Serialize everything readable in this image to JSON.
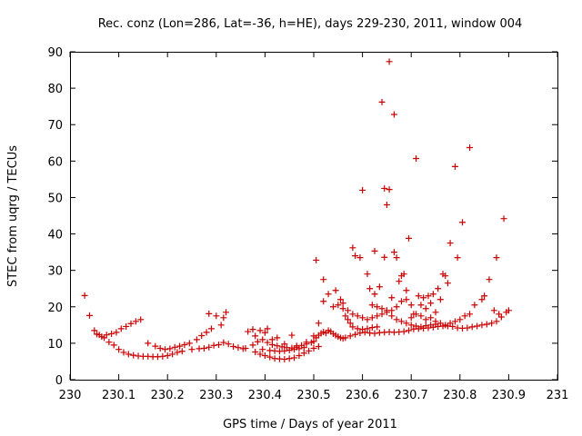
{
  "chart_data": {
    "type": "scatter",
    "title": "Rec. conz (Lon=286, Lat=-36, h=HE), days 229-230, 2011, window 004",
    "xlabel": "GPS time / Days of year 2011",
    "ylabel": "STEC from uqrg / TECUs",
    "xlim": [
      230,
      231
    ],
    "ylim": [
      0,
      90
    ],
    "x_ticks": [
      "230",
      "230.1",
      "230.2",
      "230.3",
      "230.4",
      "230.5",
      "230.6",
      "230.7",
      "230.8",
      "230.9",
      "231"
    ],
    "y_ticks": [
      "0",
      "10",
      "20",
      "30",
      "40",
      "50",
      "60",
      "70",
      "80",
      "90"
    ],
    "grid": false,
    "legend": "none",
    "marker": "+",
    "color": "#cc0000",
    "series": [
      {
        "points": [
          [
            230.03,
            23.1
          ],
          [
            230.04,
            17.6
          ],
          [
            230.05,
            13.5
          ],
          [
            230.055,
            12.5
          ],
          [
            230.065,
            11.8
          ],
          [
            230.075,
            12.3
          ],
          [
            230.085,
            12.6
          ],
          [
            230.095,
            13.0
          ],
          [
            230.105,
            14.0
          ],
          [
            230.115,
            14.6
          ],
          [
            230.125,
            15.4
          ],
          [
            230.135,
            16.0
          ],
          [
            230.145,
            16.5
          ],
          [
            230.06,
            12.3
          ],
          [
            230.07,
            11.5
          ],
          [
            230.08,
            10.3
          ],
          [
            230.09,
            9.5
          ],
          [
            230.1,
            8.3
          ],
          [
            230.11,
            7.5
          ],
          [
            230.12,
            7.0
          ],
          [
            230.13,
            6.7
          ],
          [
            230.14,
            6.5
          ],
          [
            230.15,
            6.4
          ],
          [
            230.16,
            6.4
          ],
          [
            230.17,
            6.3
          ],
          [
            230.18,
            6.3
          ],
          [
            230.19,
            6.4
          ],
          [
            230.2,
            6.6
          ],
          [
            230.21,
            7.0
          ],
          [
            230.22,
            7.5
          ],
          [
            230.23,
            7.8
          ],
          [
            230.16,
            10.0
          ],
          [
            230.175,
            9.2
          ],
          [
            230.185,
            8.6
          ],
          [
            230.195,
            8.3
          ],
          [
            230.205,
            8.5
          ],
          [
            230.215,
            8.9
          ],
          [
            230.225,
            9.2
          ],
          [
            230.235,
            9.6
          ],
          [
            230.245,
            10.0
          ],
          [
            230.26,
            11.0
          ],
          [
            230.27,
            12.1
          ],
          [
            230.28,
            13.0
          ],
          [
            230.29,
            14.0
          ],
          [
            230.285,
            18.1
          ],
          [
            230.3,
            17.5
          ],
          [
            230.31,
            15.0
          ],
          [
            230.315,
            17.0
          ],
          [
            230.32,
            18.5
          ],
          [
            230.25,
            8.3
          ],
          [
            230.265,
            8.5
          ],
          [
            230.275,
            8.6
          ],
          [
            230.285,
            8.9
          ],
          [
            230.295,
            9.4
          ],
          [
            230.305,
            9.6
          ],
          [
            230.315,
            10.2
          ],
          [
            230.325,
            9.8
          ],
          [
            230.335,
            9.1
          ],
          [
            230.345,
            8.8
          ],
          [
            230.355,
            8.5
          ],
          [
            230.36,
            8.6
          ],
          [
            230.365,
            13.2
          ],
          [
            230.375,
            13.8
          ],
          [
            230.38,
            12.0
          ],
          [
            230.39,
            13.5
          ],
          [
            230.4,
            12.9
          ],
          [
            230.405,
            14.0
          ],
          [
            230.375,
            9.5
          ],
          [
            230.385,
            10.4
          ],
          [
            230.395,
            11.0
          ],
          [
            230.405,
            10.2
          ],
          [
            230.415,
            9.6
          ],
          [
            230.425,
            9.3
          ],
          [
            230.435,
            9.0
          ],
          [
            230.445,
            8.8
          ],
          [
            230.455,
            8.7
          ],
          [
            230.465,
            8.9
          ],
          [
            230.475,
            9.4
          ],
          [
            230.485,
            9.8
          ],
          [
            230.495,
            10.2
          ],
          [
            230.5,
            10.5
          ],
          [
            230.38,
            7.6
          ],
          [
            230.39,
            7.0
          ],
          [
            230.4,
            6.6
          ],
          [
            230.41,
            6.2
          ],
          [
            230.42,
            5.8
          ],
          [
            230.43,
            5.7
          ],
          [
            230.44,
            5.6
          ],
          [
            230.45,
            5.8
          ],
          [
            230.46,
            6.0
          ],
          [
            230.47,
            6.6
          ],
          [
            230.48,
            7.3
          ],
          [
            230.49,
            7.9
          ],
          [
            230.5,
            8.6
          ],
          [
            230.51,
            9.1
          ],
          [
            230.395,
            8.3
          ],
          [
            230.41,
            8.0
          ],
          [
            230.42,
            7.9
          ],
          [
            230.43,
            7.8
          ],
          [
            230.44,
            7.9
          ],
          [
            230.45,
            8.1
          ],
          [
            230.46,
            8.3
          ],
          [
            230.47,
            8.5
          ],
          [
            230.48,
            8.8
          ],
          [
            230.415,
            11.0
          ],
          [
            230.425,
            11.5
          ],
          [
            230.44,
            9.8
          ],
          [
            230.455,
            12.2
          ],
          [
            230.465,
            9.3
          ],
          [
            230.485,
            10.3
          ],
          [
            230.5,
            12.0
          ],
          [
            230.505,
            11.5
          ],
          [
            230.51,
            12.2
          ],
          [
            230.515,
            12.7
          ],
          [
            230.52,
            13.1
          ],
          [
            230.525,
            12.8
          ],
          [
            230.53,
            13.5
          ],
          [
            230.535,
            13.2
          ],
          [
            230.54,
            12.6
          ],
          [
            230.545,
            12.2
          ],
          [
            230.55,
            11.8
          ],
          [
            230.555,
            11.5
          ],
          [
            230.56,
            11.3
          ],
          [
            230.565,
            11.5
          ],
          [
            230.575,
            12.0
          ],
          [
            230.585,
            12.4
          ],
          [
            230.595,
            12.8
          ],
          [
            230.605,
            13.0
          ],
          [
            230.615,
            12.8
          ],
          [
            230.625,
            12.7
          ],
          [
            230.635,
            12.9
          ],
          [
            230.645,
            13.0
          ],
          [
            230.655,
            13.1
          ],
          [
            230.665,
            13.0
          ],
          [
            230.675,
            13.1
          ],
          [
            230.685,
            13.2
          ],
          [
            230.695,
            13.5
          ],
          [
            230.705,
            13.9
          ],
          [
            230.715,
            14.0
          ],
          [
            230.725,
            14.1
          ],
          [
            230.735,
            14.2
          ],
          [
            230.745,
            14.4
          ],
          [
            230.755,
            14.6
          ],
          [
            230.765,
            14.7
          ],
          [
            230.775,
            14.7
          ],
          [
            230.785,
            14.6
          ],
          [
            230.795,
            14.2
          ],
          [
            230.805,
            14.1
          ],
          [
            230.815,
            14.2
          ],
          [
            230.825,
            14.5
          ],
          [
            230.835,
            14.7
          ],
          [
            230.845,
            15.0
          ],
          [
            230.855,
            15.2
          ],
          [
            230.865,
            15.5
          ],
          [
            230.875,
            16.0
          ],
          [
            230.885,
            17.2
          ],
          [
            230.895,
            18.5
          ],
          [
            230.9,
            19.0
          ],
          [
            230.51,
            15.5
          ],
          [
            230.52,
            21.5
          ],
          [
            230.53,
            23.5
          ],
          [
            230.54,
            20.0
          ],
          [
            230.545,
            24.5
          ],
          [
            230.555,
            22.0
          ],
          [
            230.56,
            19.5
          ],
          [
            230.565,
            17.5
          ],
          [
            230.57,
            16.5
          ],
          [
            230.575,
            15.5
          ],
          [
            230.58,
            14.5
          ],
          [
            230.59,
            14.0
          ],
          [
            230.6,
            13.8
          ],
          [
            230.61,
            14.0
          ],
          [
            230.62,
            14.3
          ],
          [
            230.63,
            14.5
          ],
          [
            230.55,
            20.5
          ],
          [
            230.56,
            21.0
          ],
          [
            230.57,
            19.0
          ],
          [
            230.58,
            18.0
          ],
          [
            230.59,
            17.5
          ],
          [
            230.6,
            17.0
          ],
          [
            230.61,
            16.5
          ],
          [
            230.62,
            17.0
          ],
          [
            230.63,
            17.5
          ],
          [
            230.64,
            18.0
          ],
          [
            230.65,
            18.5
          ],
          [
            230.66,
            19.0
          ],
          [
            230.505,
            32.8
          ],
          [
            230.52,
            27.5
          ],
          [
            230.58,
            36.2
          ],
          [
            230.585,
            34.0
          ],
          [
            230.595,
            33.5
          ],
          [
            230.6,
            52.0
          ],
          [
            230.61,
            29.0
          ],
          [
            230.615,
            25.0
          ],
          [
            230.625,
            23.5
          ],
          [
            230.625,
            35.3
          ],
          [
            230.635,
            25.5
          ],
          [
            230.64,
            76.2
          ],
          [
            230.645,
            52.5
          ],
          [
            230.645,
            33.6
          ],
          [
            230.65,
            48.0
          ],
          [
            230.655,
            87.3
          ],
          [
            230.655,
            52.2
          ],
          [
            230.665,
            72.8
          ],
          [
            230.665,
            35.0
          ],
          [
            230.67,
            33.5
          ],
          [
            230.675,
            27.0
          ],
          [
            230.68,
            28.5
          ],
          [
            230.685,
            29.0
          ],
          [
            230.69,
            24.5
          ],
          [
            230.695,
            38.8
          ],
          [
            230.7,
            20.5
          ],
          [
            230.705,
            18.0
          ],
          [
            230.71,
            60.7
          ],
          [
            230.715,
            23.0
          ],
          [
            230.72,
            20.5
          ],
          [
            230.725,
            22.5
          ],
          [
            230.73,
            19.5
          ],
          [
            230.735,
            23.0
          ],
          [
            230.74,
            21.0
          ],
          [
            230.745,
            23.5
          ],
          [
            230.75,
            18.5
          ],
          [
            230.755,
            25.0
          ],
          [
            230.76,
            22.0
          ],
          [
            230.765,
            29.0
          ],
          [
            230.77,
            28.5
          ],
          [
            230.775,
            26.5
          ],
          [
            230.78,
            37.5
          ],
          [
            230.79,
            58.5
          ],
          [
            230.795,
            33.5
          ],
          [
            230.805,
            43.2
          ],
          [
            230.82,
            63.7
          ],
          [
            230.83,
            20.5
          ],
          [
            230.845,
            22.0
          ],
          [
            230.85,
            23.0
          ],
          [
            230.86,
            27.5
          ],
          [
            230.87,
            19.0
          ],
          [
            230.875,
            33.5
          ],
          [
            230.88,
            18.0
          ],
          [
            230.89,
            44.2
          ],
          [
            230.62,
            20.5
          ],
          [
            230.63,
            20.0
          ],
          [
            230.64,
            19.5
          ],
          [
            230.65,
            19.0
          ],
          [
            230.66,
            17.5
          ],
          [
            230.67,
            16.5
          ],
          [
            230.68,
            16.0
          ],
          [
            230.69,
            15.5
          ],
          [
            230.7,
            15.0
          ],
          [
            230.71,
            14.7
          ],
          [
            230.72,
            14.5
          ],
          [
            230.73,
            14.8
          ],
          [
            230.74,
            15.0
          ],
          [
            230.75,
            15.2
          ],
          [
            230.76,
            15.5
          ],
          [
            230.77,
            15.0
          ],
          [
            230.78,
            15.5
          ],
          [
            230.79,
            16.0
          ],
          [
            230.8,
            16.5
          ],
          [
            230.81,
            17.5
          ],
          [
            230.82,
            18.0
          ],
          [
            230.66,
            22.5
          ],
          [
            230.67,
            20.0
          ],
          [
            230.68,
            21.5
          ],
          [
            230.69,
            22.0
          ],
          [
            230.7,
            17.0
          ],
          [
            230.71,
            18.0
          ],
          [
            230.72,
            17.5
          ],
          [
            230.73,
            16.5
          ],
          [
            230.74,
            17.0
          ],
          [
            230.75,
            16.0
          ]
        ]
      }
    ]
  }
}
